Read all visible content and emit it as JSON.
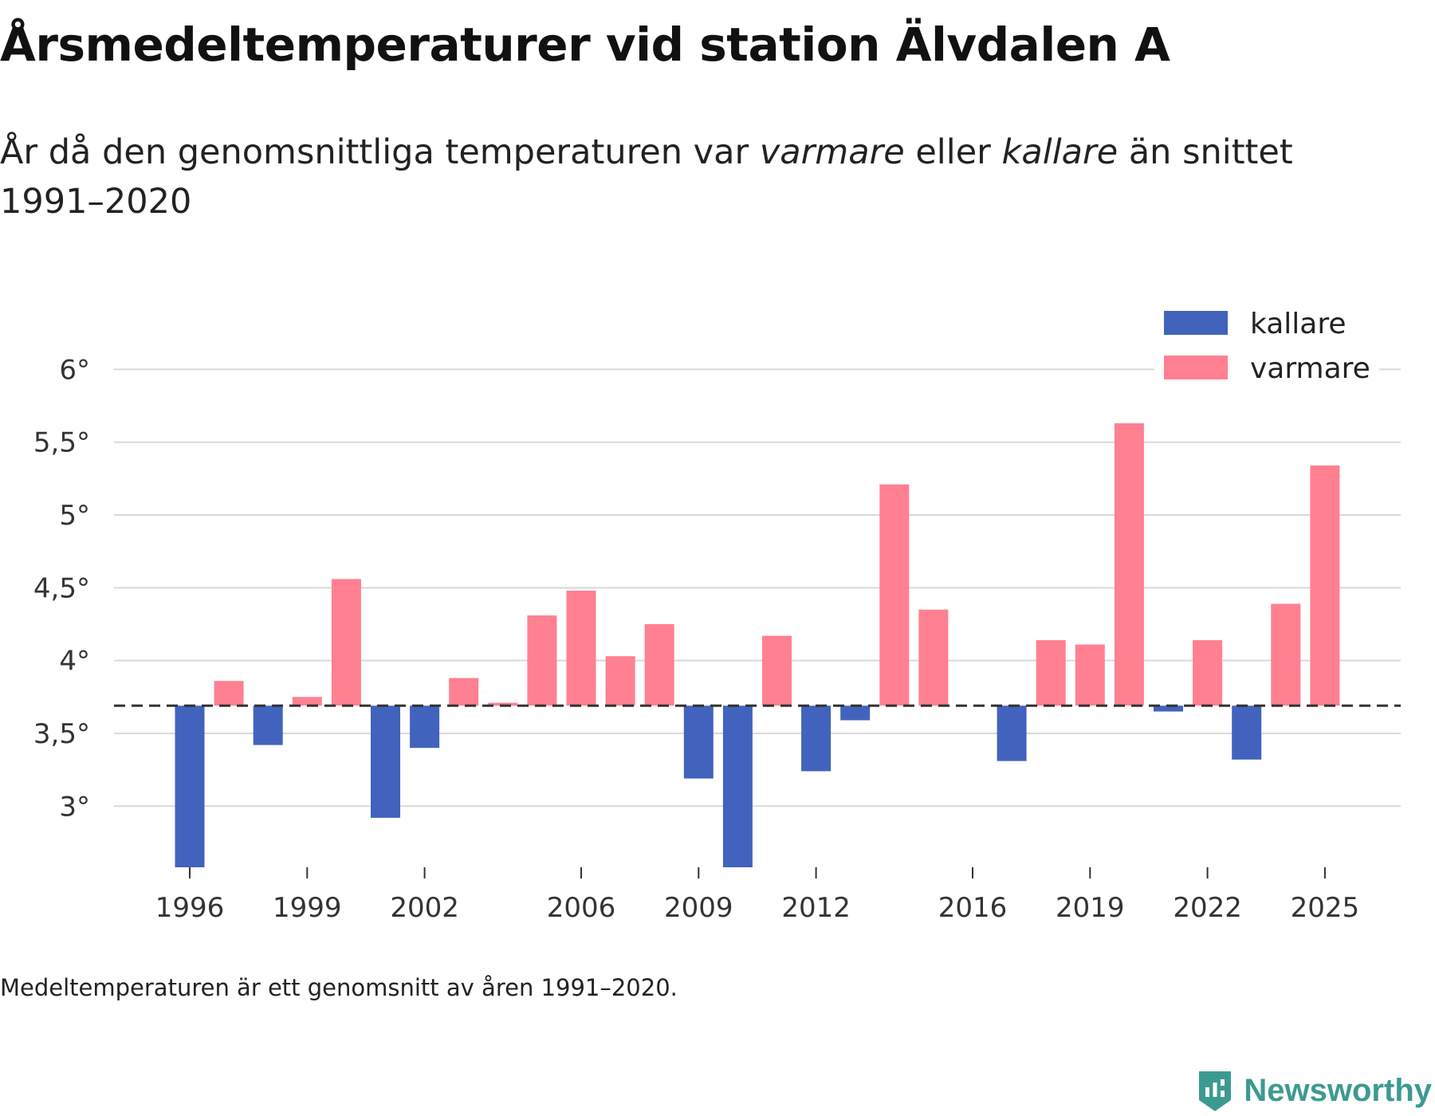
{
  "title": "Årsmedeltemperaturer vid station Älvdalen A",
  "subtitle": {
    "part1": "År då den genomsnittliga temperaturen var ",
    "warm_word": "varmare",
    "part2": " eller ",
    "cold_word": "kallare",
    "part3": " än snittet 1991–2020"
  },
  "footnote": "Medeltemperaturen är ett genomsnitt av åren 1991–2020.",
  "brand": "Newsworthy",
  "colors": {
    "cold": "#4263bd",
    "warm": "#ff8091",
    "grid": "#d9d9d9",
    "baseline": "#333333",
    "brand": "#3d9a92"
  },
  "chart_data": {
    "type": "bar",
    "baseline": 3.69,
    "ylim": [
      2.58,
      6.15
    ],
    "yticks": [
      3,
      3.5,
      4,
      4.5,
      5,
      5.5,
      6
    ],
    "ytick_labels": [
      "3°",
      "3,5°",
      "4°",
      "4,5°",
      "5°",
      "5,5°",
      "6°"
    ],
    "xtick_years": [
      1996,
      1999,
      2002,
      2006,
      2009,
      2012,
      2016,
      2019,
      2022,
      2025
    ],
    "xtick_labels": [
      "1996",
      "1999",
      "2002",
      "2006",
      "2009",
      "2012",
      "2016",
      "2019",
      "2022",
      "2025"
    ],
    "legend": [
      {
        "label": "kallare",
        "key": "cold"
      },
      {
        "label": "varmare",
        "key": "warm"
      }
    ],
    "x": [
      1996,
      1997,
      1998,
      1999,
      2000,
      2001,
      2002,
      2003,
      2004,
      2005,
      2006,
      2007,
      2008,
      2009,
      2010,
      2011,
      2012,
      2013,
      2014,
      2015,
      2017,
      2018,
      2019,
      2020,
      2021,
      2022,
      2023,
      2024,
      2025
    ],
    "values": [
      2.58,
      3.86,
      3.42,
      3.75,
      4.56,
      2.92,
      3.4,
      3.88,
      3.71,
      4.31,
      4.48,
      4.03,
      4.25,
      3.19,
      2.58,
      4.17,
      3.24,
      3.59,
      5.21,
      4.35,
      3.31,
      4.14,
      4.11,
      5.63,
      3.65,
      4.14,
      3.32,
      4.39,
      5.34
    ]
  }
}
